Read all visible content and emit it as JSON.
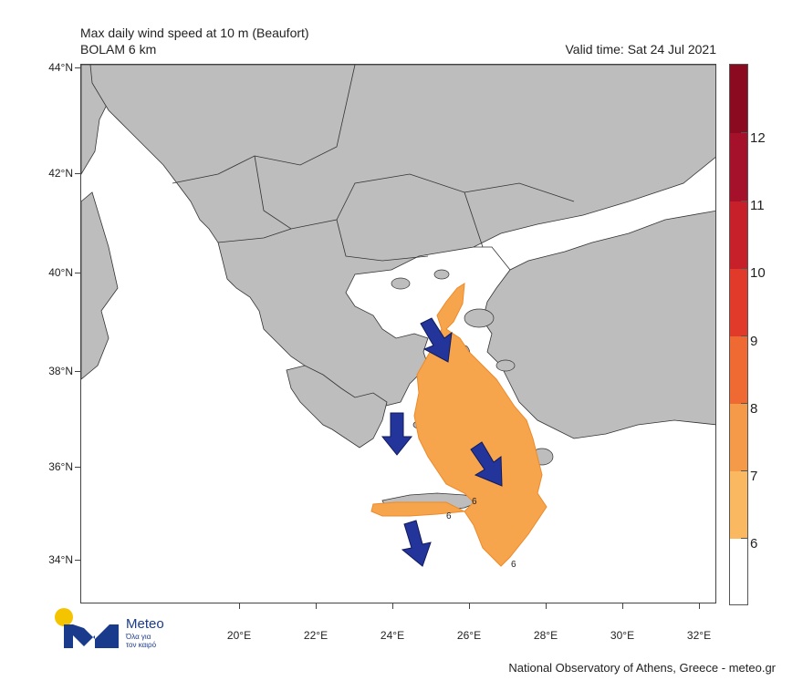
{
  "header": {
    "title": "Max daily wind speed at 10 m (Beaufort)",
    "model": "BOLAM 6 km",
    "valid_time": "Valid time: Sat 24 Jul 2021"
  },
  "axes": {
    "lat_labels": [
      "44°N",
      "42°N",
      "40°N",
      "38°N",
      "36°N",
      "34°N"
    ],
    "lon_labels": [
      "20°E",
      "22°E",
      "24°E",
      "26°E",
      "28°E",
      "30°E",
      "32°E"
    ]
  },
  "colorbar": {
    "labels": [
      "12",
      "11",
      "10",
      "9",
      "8",
      "7",
      "6"
    ],
    "colors": [
      "#8b0a1f",
      "#a5102a",
      "#c8202a",
      "#e23a2a",
      "#ee6a32",
      "#f59a48",
      "#fab860",
      "#ffffff"
    ]
  },
  "contour_labels": [
    "6",
    "6",
    "6"
  ],
  "colors": {
    "land": "#bdbdbd",
    "sea": "#ffffff",
    "wind_zone": "#f6a54c",
    "arrow": "#23359a"
  },
  "logo": {
    "name": "Meteo",
    "tagline_1": "Όλα για",
    "tagline_2": "τον καιρό"
  },
  "footer": {
    "credit": "National Observatory of Athens, Greece - meteo.gr"
  }
}
